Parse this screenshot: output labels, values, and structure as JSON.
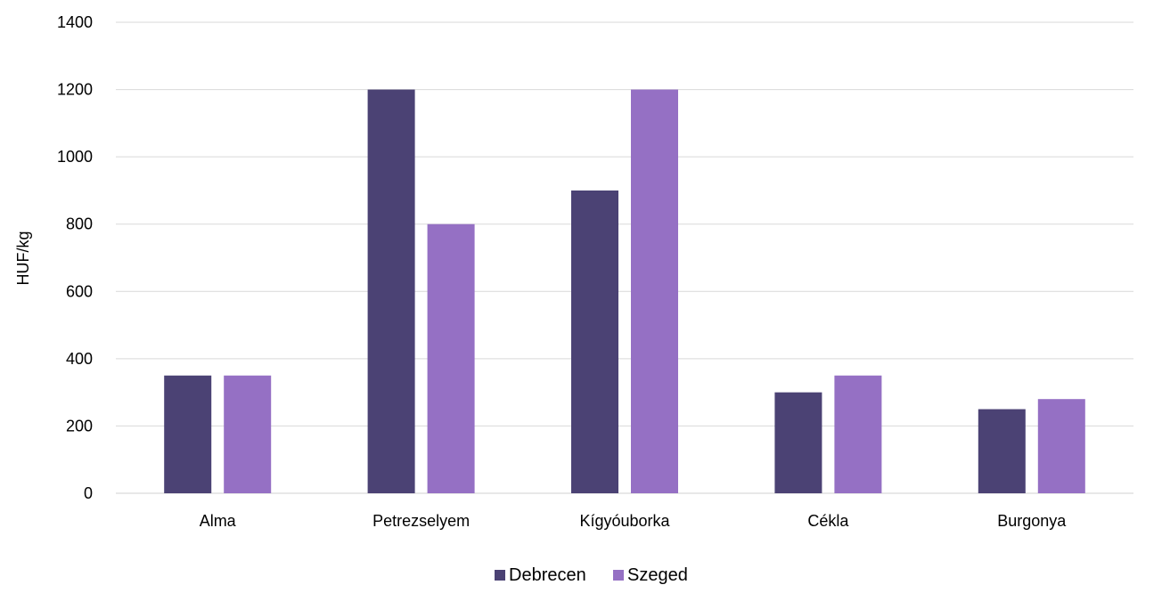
{
  "chart_data": {
    "type": "bar",
    "title": "",
    "xlabel": "",
    "ylabel": "HUF/kg",
    "ylim": [
      0,
      1400
    ],
    "yticks": [
      0,
      200,
      400,
      600,
      800,
      1000,
      1200,
      1400
    ],
    "grid": true,
    "legend_position": "bottom",
    "categories": [
      "Alma",
      "Petrezselyem",
      "Kígyóuborka",
      "Cékla",
      "Burgonya"
    ],
    "series": [
      {
        "name": "Debrecen",
        "color": "#4b4274",
        "values": [
          350,
          1200,
          900,
          300,
          250
        ]
      },
      {
        "name": "Szeged",
        "color": "#9570c4",
        "values": [
          350,
          800,
          1200,
          350,
          280
        ]
      }
    ]
  }
}
